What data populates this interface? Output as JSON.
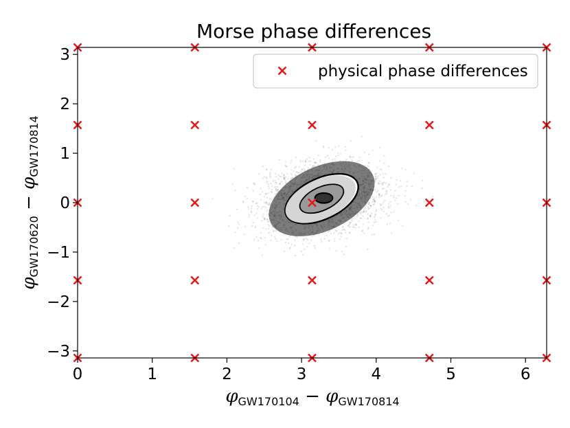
{
  "chart_data": {
    "type": "scatter",
    "title": "Morse phase differences",
    "xlabel": {
      "main": "φ",
      "sub1": "GW170104",
      "op": " − ",
      "main2": "φ",
      "sub2": "GW170814"
    },
    "ylabel": {
      "main": "φ",
      "sub1": "GW170620",
      "op": " − ",
      "main2": "φ",
      "sub2": "GW170814"
    },
    "xlim": [
      0,
      6.2832
    ],
    "ylim": [
      -3.1416,
      3.1416
    ],
    "xticks": [
      0,
      1,
      2,
      3,
      4,
      5,
      6
    ],
    "xtick_labels": [
      "0",
      "1",
      "2",
      "3",
      "4",
      "5",
      "6"
    ],
    "yticks": [
      -3,
      -2,
      -1,
      0,
      1,
      2,
      3
    ],
    "ytick_labels": [
      "−3",
      "−2",
      "−1",
      "0",
      "1",
      "2",
      "3"
    ],
    "grid": false,
    "legend": {
      "position": "top-right",
      "entries": [
        {
          "label": "physical phase differences",
          "marker": "x",
          "color": "#e31a1c"
        }
      ]
    },
    "series": [
      {
        "name": "physical phase differences",
        "marker": "x",
        "color": "#e31a1c",
        "x": [
          0,
          1.5708,
          3.1416,
          4.7124,
          6.2832,
          0,
          1.5708,
          3.1416,
          4.7124,
          6.2832,
          0,
          1.5708,
          3.1416,
          4.7124,
          6.2832,
          0,
          1.5708,
          3.1416,
          4.7124,
          6.2832,
          0,
          1.5708,
          3.1416,
          4.7124,
          6.2832
        ],
        "y": [
          3.1416,
          3.1416,
          3.1416,
          3.1416,
          3.1416,
          1.5708,
          1.5708,
          1.5708,
          1.5708,
          1.5708,
          0,
          0,
          0,
          0,
          0,
          -1.5708,
          -1.5708,
          -1.5708,
          -1.5708,
          -1.5708,
          -3.1416,
          -3.1416,
          -3.1416,
          -3.1416,
          -3.1416
        ]
      }
    ],
    "posterior": {
      "center": [
        3.27,
        0.08
      ],
      "spread_x": 0.42,
      "spread_y": 0.36,
      "correlation": 0.2,
      "color": "#000000"
    }
  }
}
